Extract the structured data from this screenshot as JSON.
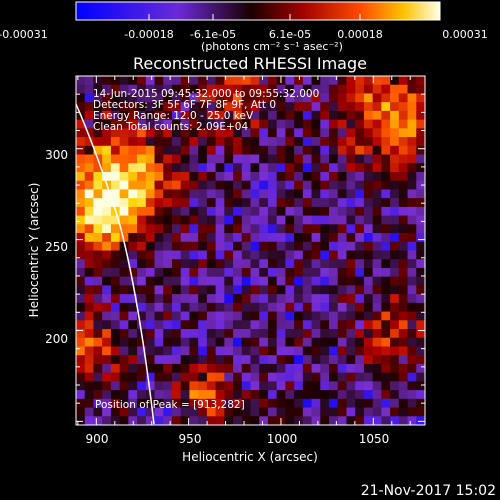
{
  "colorbar": {
    "tick_labels": [
      "-0.00031",
      "-0.00018",
      "-6.1e-05",
      "6.1e-05",
      "0.00018",
      "0.00031"
    ],
    "units": "(photons cm⁻² s⁻¹ asec⁻²)"
  },
  "title": "Reconstructed RHESSI Image",
  "info": {
    "time_range": "14-Jun-2015 09:45:32.000 to 09:55:32.000",
    "detectors": "Detectors: 3F 5F 6F 7F 8F 9F, Att 0",
    "energy": "Energy Range: 12.0 - 25.0 keV",
    "clean": "Clean     Total counts: 2.09E+04"
  },
  "peak_label": "Position of Peak = [913,282]",
  "axes": {
    "xlabel": "Heliocentric X (arcsec)",
    "ylabel": "Heliocentric Y (arcsec)",
    "x_ticks": [
      "900",
      "950",
      "1000",
      "1050"
    ],
    "y_ticks": [
      "200",
      "250",
      "300"
    ]
  },
  "timestamp": "21-Nov-2017 15:02",
  "chart_data": {
    "type": "heatmap",
    "x_tick_values": [
      900,
      950,
      1000,
      1050
    ],
    "y_tick_values": [
      200,
      250,
      300
    ],
    "xlim": [
      889,
      1078
    ],
    "ylim": [
      148,
      340
    ],
    "peak": [
      913,
      282
    ],
    "colormap": [
      "#0000ff",
      "#7a2fd0",
      "#1a0000",
      "#b00000",
      "#ff5a00",
      "#ffd400",
      "#ffffe0"
    ],
    "limb_color": "#ffffff"
  }
}
